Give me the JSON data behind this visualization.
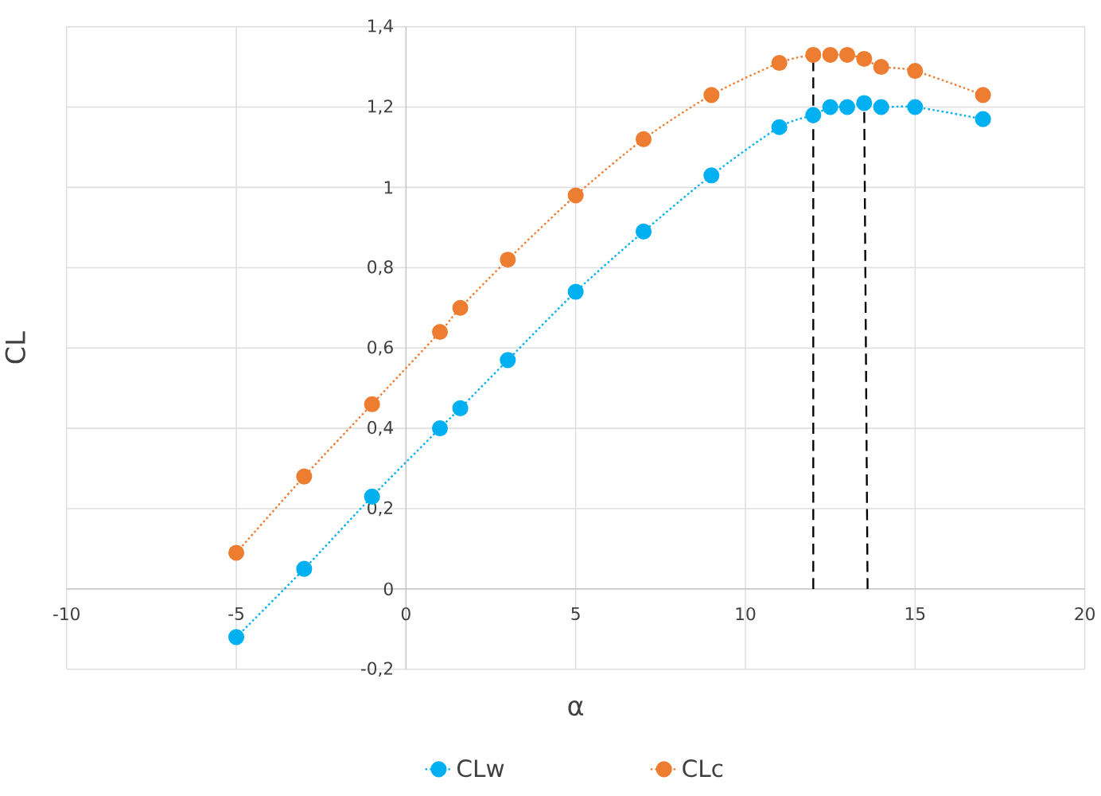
{
  "chart_data": {
    "type": "line",
    "xlabel": "α",
    "ylabel": "CL",
    "xlim": [
      -10,
      20
    ],
    "ylim": [
      -0.2,
      1.4
    ],
    "xticks": [
      -10,
      -5,
      0,
      5,
      10,
      15,
      20
    ],
    "yticks": [
      {
        "value": -0.2,
        "label": "-0,2"
      },
      0,
      {
        "value": 0.2,
        "label": "0,2"
      },
      {
        "value": 0.4,
        "label": "0,4"
      },
      {
        "value": 0.6,
        "label": "0,6"
      },
      {
        "value": 0.8,
        "label": "0,8"
      },
      1,
      {
        "value": 1.2,
        "label": "1,2"
      },
      {
        "value": 1.4,
        "label": "1,4"
      }
    ],
    "grid": true,
    "legend": "bottom",
    "marker": "circle",
    "line_style": "dotted",
    "series": [
      {
        "name": "CLw",
        "color": "#00b0f0",
        "x": [
          -5,
          -3,
          -1,
          1,
          1.6,
          3,
          5,
          7,
          9,
          11,
          12,
          12.5,
          13,
          13.5,
          14,
          15,
          17
        ],
        "values": [
          -0.12,
          0.05,
          0.23,
          0.4,
          0.45,
          0.57,
          0.74,
          0.89,
          1.03,
          1.15,
          1.18,
          1.2,
          1.2,
          1.21,
          1.2,
          1.2,
          1.17
        ]
      },
      {
        "name": "CLc",
        "color": "#ed7d31",
        "x": [
          -5,
          -3,
          -1,
          1,
          1.6,
          3,
          5,
          7,
          9,
          11,
          12,
          12.5,
          13,
          13.5,
          14,
          15,
          17
        ],
        "values": [
          0.09,
          0.28,
          0.46,
          0.64,
          0.7,
          0.82,
          0.98,
          1.12,
          1.23,
          1.31,
          1.33,
          1.33,
          1.33,
          1.32,
          1.3,
          1.29,
          1.23
        ]
      },
      {
        "color": "#000000",
        "line_style": "dashed",
        "marker": "none",
        "x": [
          12,
          12
        ],
        "values": [
          0,
          1.33
        ]
      },
      {
        "color": "#000000",
        "line_style": "dashed",
        "marker": "none",
        "x": [
          13.6,
          13.5
        ],
        "values": [
          0,
          1.21
        ]
      }
    ]
  }
}
